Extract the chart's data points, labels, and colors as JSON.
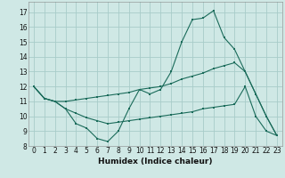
{
  "xlabel": "Humidex (Indice chaleur)",
  "background_color": "#cfe8e5",
  "grid_color": "#a8ccc9",
  "line_color": "#1a6b5a",
  "xlim": [
    -0.5,
    23.5
  ],
  "ylim": [
    8,
    17.7
  ],
  "yticks": [
    8,
    9,
    10,
    11,
    12,
    13,
    14,
    15,
    16,
    17
  ],
  "xticks": [
    0,
    1,
    2,
    3,
    4,
    5,
    6,
    7,
    8,
    9,
    10,
    11,
    12,
    13,
    14,
    15,
    16,
    17,
    18,
    19,
    20,
    21,
    22,
    23
  ],
  "line1": {
    "x": [
      0,
      1,
      2,
      3,
      4,
      5,
      6,
      7,
      8,
      9,
      10,
      11,
      12,
      13,
      14,
      15,
      16,
      17,
      18,
      19,
      20,
      21,
      22,
      23
    ],
    "y": [
      12,
      11.2,
      11.0,
      10.5,
      9.5,
      9.2,
      8.5,
      8.3,
      9.0,
      10.5,
      11.8,
      11.5,
      11.8,
      13.0,
      15.0,
      16.5,
      16.6,
      17.1,
      15.3,
      14.5,
      13.0,
      11.5,
      10.0,
      8.7
    ]
  },
  "line2": {
    "x": [
      0,
      1,
      2,
      3,
      4,
      5,
      6,
      7,
      8,
      9,
      10,
      11,
      12,
      13,
      14,
      15,
      16,
      17,
      18,
      19,
      20,
      21,
      22,
      23
    ],
    "y": [
      12,
      11.2,
      11.0,
      11.0,
      11.1,
      11.2,
      11.3,
      11.4,
      11.5,
      11.6,
      11.8,
      11.9,
      12.0,
      12.2,
      12.5,
      12.7,
      12.9,
      13.2,
      13.4,
      13.6,
      13.0,
      11.5,
      10.0,
      8.7
    ]
  },
  "line3": {
    "x": [
      0,
      1,
      2,
      3,
      4,
      5,
      6,
      7,
      8,
      9,
      10,
      11,
      12,
      13,
      14,
      15,
      16,
      17,
      18,
      19,
      20,
      21,
      22,
      23
    ],
    "y": [
      12,
      11.2,
      11.0,
      10.5,
      10.2,
      9.9,
      9.7,
      9.5,
      9.6,
      9.7,
      9.8,
      9.9,
      10.0,
      10.1,
      10.2,
      10.3,
      10.5,
      10.6,
      10.7,
      10.8,
      12.0,
      10.0,
      9.0,
      8.7
    ]
  },
  "figsize": [
    3.2,
    2.0
  ],
  "dpi": 100
}
